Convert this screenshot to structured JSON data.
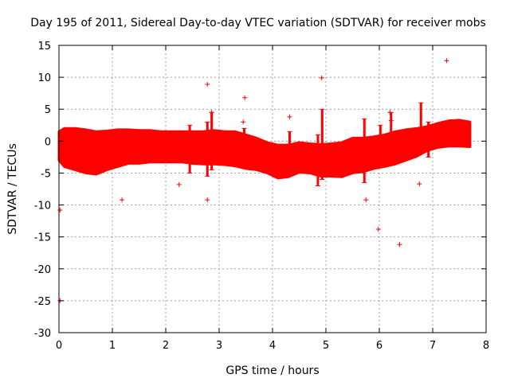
{
  "chart_data": {
    "type": "scatter",
    "title": "Day 195 of 2011, Sidereal Day-to-day VTEC variation (SDTVAR) for receiver mobs",
    "xlabel": "GPS time / hours",
    "ylabel": "SDTVAR / TECUs",
    "xlim": [
      0,
      8
    ],
    "ylim": [
      -30,
      15
    ],
    "xticks": [
      0,
      1,
      2,
      3,
      4,
      5,
      6,
      7,
      8
    ],
    "yticks": [
      -30,
      -25,
      -20,
      -15,
      -10,
      -5,
      0,
      5,
      10,
      15
    ],
    "grid": true,
    "marker": "+",
    "series_color": "#ff0000",
    "band": {
      "x": [
        0.0,
        0.1,
        0.3,
        0.5,
        0.7,
        0.9,
        1.1,
        1.3,
        1.5,
        1.7,
        1.9,
        2.1,
        2.3,
        2.5,
        2.7,
        2.9,
        3.1,
        3.3,
        3.5,
        3.7,
        3.9,
        4.1,
        4.3,
        4.5,
        4.7,
        4.9,
        5.1,
        5.3,
        5.5,
        5.7,
        5.9,
        6.1,
        6.3,
        6.5,
        6.7,
        6.9,
        7.1,
        7.3,
        7.5,
        7.7
      ],
      "upper": [
        1.5,
        2.0,
        2.0,
        1.8,
        1.5,
        1.6,
        1.8,
        1.8,
        1.7,
        1.7,
        1.5,
        1.5,
        1.5,
        1.5,
        1.5,
        1.7,
        1.5,
        1.5,
        1.0,
        0.5,
        -0.2,
        -0.6,
        -0.6,
        -0.2,
        -0.4,
        -0.5,
        -0.4,
        -0.2,
        0.5,
        0.5,
        0.7,
        1.0,
        1.5,
        1.8,
        2.0,
        2.3,
        2.8,
        3.2,
        3.3,
        3.0
      ],
      "lower": [
        -3.0,
        -4.0,
        -4.5,
        -5.0,
        -5.2,
        -4.5,
        -4.0,
        -3.5,
        -3.5,
        -3.3,
        -3.3,
        -3.3,
        -3.3,
        -3.5,
        -3.6,
        -3.6,
        -3.7,
        -3.9,
        -4.3,
        -4.5,
        -5.0,
        -5.8,
        -5.6,
        -4.9,
        -5.0,
        -5.5,
        -5.5,
        -5.6,
        -5.0,
        -4.8,
        -4.3,
        -4.0,
        -3.6,
        -3.0,
        -2.4,
        -1.5,
        -1.0,
        -0.8,
        -0.8,
        -0.9
      ]
    },
    "spikes": [
      {
        "x": 2.45,
        "low": -5.0,
        "high": 2.5
      },
      {
        "x": 2.78,
        "low": -5.5,
        "high": 3.0
      },
      {
        "x": 2.86,
        "low": -4.5,
        "high": 4.5
      },
      {
        "x": 3.47,
        "low": -4.0,
        "high": 2.0
      },
      {
        "x": 4.32,
        "low": -5.5,
        "high": 1.5
      },
      {
        "x": 4.85,
        "low": -7.0,
        "high": 1.0
      },
      {
        "x": 4.93,
        "low": -6.0,
        "high": 5.0
      },
      {
        "x": 5.72,
        "low": -6.5,
        "high": 3.5
      },
      {
        "x": 6.02,
        "low": -3.0,
        "high": 2.5
      },
      {
        "x": 6.22,
        "low": -2.0,
        "high": 4.5
      },
      {
        "x": 6.78,
        "low": -1.5,
        "high": 6.0
      },
      {
        "x": 6.92,
        "low": -2.5,
        "high": 3.0
      }
    ],
    "outliers": [
      {
        "x": 0.02,
        "y": -10.8
      },
      {
        "x": 0.02,
        "y": -25.0
      },
      {
        "x": 1.18,
        "y": -9.2
      },
      {
        "x": 2.25,
        "y": -6.8
      },
      {
        "x": 2.78,
        "y": 8.9
      },
      {
        "x": 2.78,
        "y": -9.2
      },
      {
        "x": 2.86,
        "y": 4.5
      },
      {
        "x": 3.48,
        "y": 6.8
      },
      {
        "x": 3.45,
        "y": 3.0
      },
      {
        "x": 4.32,
        "y": 3.8
      },
      {
        "x": 4.92,
        "y": 9.9
      },
      {
        "x": 5.75,
        "y": -9.2
      },
      {
        "x": 5.98,
        "y": -13.8
      },
      {
        "x": 6.2,
        "y": 4.5
      },
      {
        "x": 6.22,
        "y": 3.2
      },
      {
        "x": 6.38,
        "y": -16.2
      },
      {
        "x": 6.75,
        "y": -6.7
      },
      {
        "x": 7.26,
        "y": 12.6
      },
      {
        "x": 7.67,
        "y": -0.5
      }
    ]
  }
}
